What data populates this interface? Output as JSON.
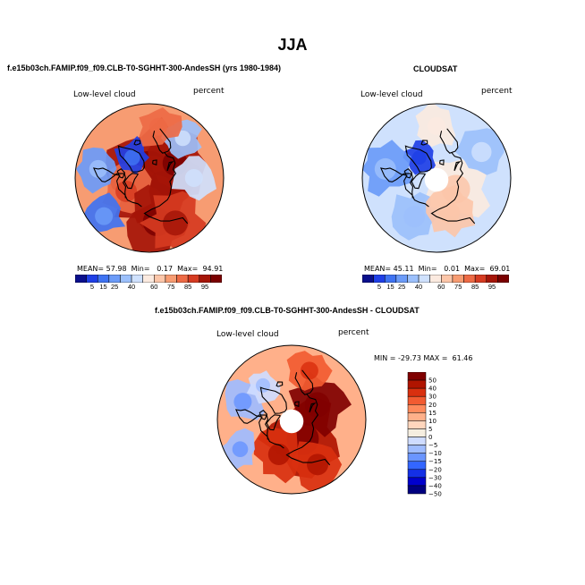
{
  "figure": {
    "title": "JJA"
  },
  "chart_data": [
    {
      "type": "heatmap",
      "projection": "north-polar-stereographic",
      "title": "f.e15b03ch.FAMIP.f09_f09.CLB-T0-SGHHT-300-AndesSH (yrs 1980-1984)",
      "left_label": "Low-level cloud",
      "right_label": "percent",
      "stats": {
        "mean_label": "MEAN=",
        "mean": "57.98",
        "min_label": "Min=",
        "min": "0.17",
        "max_label": "Max=",
        "max": "94.91"
      },
      "colorbar_ticks": [
        "5",
        "15",
        "25",
        "40",
        "60",
        "75",
        "85",
        "95"
      ],
      "field": [
        {
          "lat": 85,
          "lon": 0,
          "value": 88,
          "radius": 55
        },
        {
          "lat": 80,
          "lon": 120,
          "value": 92,
          "radius": 40
        },
        {
          "lat": 75,
          "lon": 180,
          "value": 85,
          "radius": 38
        },
        {
          "lat": 72,
          "lon": 240,
          "value": 75,
          "radius": 30
        },
        {
          "lat": 70,
          "lon": 60,
          "value": 90,
          "radius": 35
        },
        {
          "lat": 60,
          "lon": 170,
          "value": 88,
          "radius": 40
        },
        {
          "lat": 55,
          "lon": 150,
          "value": 82,
          "radius": 35
        },
        {
          "lat": 72,
          "lon": 320,
          "value": 15,
          "radius": 22
        },
        {
          "lat": 55,
          "lon": 280,
          "value": 28,
          "radius": 25
        },
        {
          "lat": 50,
          "lon": 230,
          "value": 22,
          "radius": 25
        },
        {
          "lat": 55,
          "lon": 40,
          "value": 35,
          "radius": 22
        },
        {
          "lat": 60,
          "lon": 90,
          "value": 40,
          "radius": 25
        },
        {
          "lat": 55,
          "lon": 10,
          "value": 70,
          "radius": 25
        }
      ]
    },
    {
      "type": "heatmap",
      "projection": "north-polar-stereographic",
      "title": "CLOUDSAT",
      "left_label": "Low-level cloud",
      "right_label": "percent",
      "stats": {
        "mean_label": "MEAN=",
        "mean": "45.11",
        "min_label": "Min=",
        "min": "0.01",
        "max_label": "Max=",
        "max": "69.01"
      },
      "colorbar_ticks": [
        "5",
        "15",
        "25",
        "40",
        "60",
        "75",
        "85",
        "95"
      ],
      "missing_data_poleward_of_lat": 82,
      "field": [
        {
          "lat": 75,
          "lon": 120,
          "value": 52,
          "radius": 40
        },
        {
          "lat": 72,
          "lon": 320,
          "value": 10,
          "radius": 20
        },
        {
          "lat": 55,
          "lon": 280,
          "value": 30,
          "radius": 30
        },
        {
          "lat": 60,
          "lon": 210,
          "value": 32,
          "radius": 30
        },
        {
          "lat": 55,
          "lon": 60,
          "value": 35,
          "radius": 28
        },
        {
          "lat": 55,
          "lon": 0,
          "value": 48,
          "radius": 25
        },
        {
          "lat": 65,
          "lon": 160,
          "value": 55,
          "radius": 30
        }
      ]
    },
    {
      "type": "heatmap",
      "projection": "north-polar-stereographic",
      "title": "f.e15b03ch.FAMIP.f09_f09.CLB-T0-SGHHT-300-AndesSH - CLOUDSAT",
      "left_label": "Low-level cloud",
      "right_label": "percent",
      "stats_text": "MIN = -29.73 MAX =  61.46",
      "colorbar_ticks": [
        "50",
        "40",
        "30",
        "20",
        "15",
        "10",
        "5",
        "0",
        "−5",
        "−10",
        "−15",
        "−20",
        "−30",
        "−40",
        "−50"
      ],
      "missing_data_poleward_of_lat": 82,
      "field": [
        {
          "lat": 75,
          "lon": 150,
          "value": 38,
          "radius": 45
        },
        {
          "lat": 70,
          "lon": 60,
          "value": 42,
          "radius": 35
        },
        {
          "lat": 65,
          "lon": 200,
          "value": 30,
          "radius": 30
        },
        {
          "lat": 55,
          "lon": 150,
          "value": 25,
          "radius": 30
        },
        {
          "lat": 55,
          "lon": 290,
          "value": -12,
          "radius": 25
        },
        {
          "lat": 60,
          "lon": 320,
          "value": -8,
          "radius": 20
        },
        {
          "lat": 50,
          "lon": 240,
          "value": -10,
          "radius": 22
        },
        {
          "lat": 55,
          "lon": 20,
          "value": 20,
          "radius": 25
        }
      ]
    }
  ],
  "colors": {
    "full_scale": [
      "#0a0f8c",
      "#1f3fe6",
      "#3f73f2",
      "#6b9bf8",
      "#9cc0fb",
      "#cfe1fd",
      "#fbeae0",
      "#fcc6a9",
      "#f79c72",
      "#ed6a45",
      "#d63b21",
      "#a51508",
      "#7a0000"
    ],
    "diff_scale": [
      "#000080",
      "#0000cd",
      "#1430e6",
      "#3366ff",
      "#6a95ff",
      "#9fbcff",
      "#cfdcff",
      "#f5eee0",
      "#ffd6bd",
      "#ffb08a",
      "#ff8a5c",
      "#f25b31",
      "#d9300f",
      "#b01400",
      "#800000"
    ],
    "land_outline": "#000000"
  }
}
